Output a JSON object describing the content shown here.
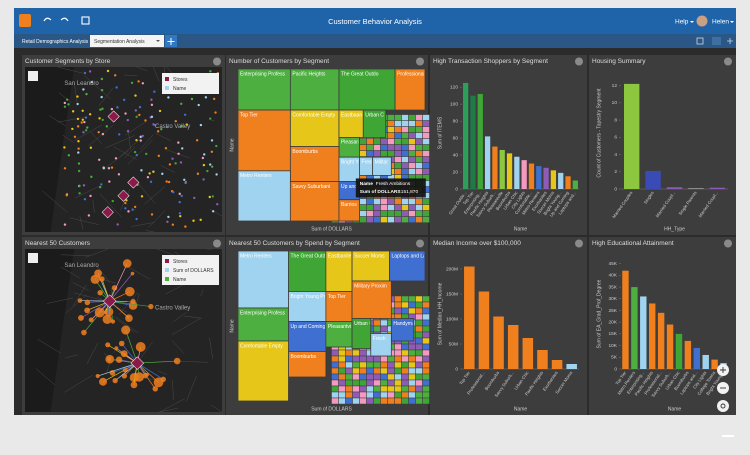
{
  "header": {
    "title": "Customer Behavior Analysis",
    "help": "Help",
    "user": "Helen"
  },
  "tabs": [
    "Retail Demographics Analysis",
    "Segmentation Analysis"
  ],
  "cards": [
    {
      "title": "Customer Segments by Store",
      "type": "map",
      "legend": [
        "Stores",
        "Name"
      ],
      "places": [
        "San Leandro",
        "Castro Valley"
      ]
    },
    {
      "title": "Number of Customers by Segment",
      "type": "treemap",
      "xlabel": "Sum of DOLLARS",
      "ylabel": "Name",
      "tiles": [
        {
          "label": "Enterprising Profess",
          "color": "#4caf3f"
        },
        {
          "label": "Pacific Heights",
          "color": "#4caf3f"
        },
        {
          "label": "The Great Outdo",
          "color": "#3fa535"
        },
        {
          "label": "Professional Pride",
          "color": "#f07f1e"
        },
        {
          "label": "Top Tier",
          "color": "#f07f1e"
        },
        {
          "label": "Comfortable Empty",
          "color": "#e6c619"
        },
        {
          "label": "Eastbaanites",
          "color": "#e6c619"
        },
        {
          "label": "Urban C",
          "color": "#3fa535"
        },
        {
          "label": "Pleasan",
          "color": "#4caf3f"
        },
        {
          "label": "Boomburbs",
          "color": "#f07f1e"
        },
        {
          "label": "Metro Renters",
          "color": "#9fd3f0"
        },
        {
          "label": "Savvy Suburbani",
          "color": "#f07f1e"
        },
        {
          "label": "Fresh",
          "color": "#9fd3f0"
        },
        {
          "label": "Militar",
          "color": "#9fd3f0"
        },
        {
          "label": "Bright Youn",
          "color": "#9fd3f0"
        },
        {
          "label": "Up and",
          "color": "#3f6fd0"
        },
        {
          "label": "Barrios",
          "color": "#f07f1e"
        }
      ],
      "tooltip": {
        "field": "Name",
        "name": "Fresh Ambitions",
        "measure": "Sum of DOLLARS",
        "value": "151,870"
      }
    },
    {
      "title": "High Transaction Shoppers by Segment",
      "type": "bar",
      "ylabel": "Sum of ITEMS",
      "xlabel": "Name",
      "categories": [
        "Great Outdo...",
        "Top Tier",
        "Enterprising...",
        "Pacific Heights",
        "Savvy Suburb...",
        "Pleasantville",
        "Boomburbs",
        "Urban Chic",
        "City Lights",
        "Comfortable...",
        "Metro Renters",
        "Exurbanites",
        "Soccer Moms",
        "Bright Young...",
        "Up and Coming",
        "Laptops and..."
      ],
      "values": [
        125,
        110,
        112,
        62,
        50,
        46,
        42,
        38,
        34,
        30,
        27,
        25,
        22,
        19,
        15,
        10
      ],
      "colors": [
        "#2e9e5b",
        "#1f7a45",
        "#3fa535",
        "#9fd3f0",
        "#f07f1e",
        "#8dc63f",
        "#e6c619",
        "#9fd3f0",
        "#f49ac1",
        "#f07f1e",
        "#3f6fd0",
        "#8e5bb5",
        "#e6c619",
        "#9fd3f0",
        "#f07f1e",
        "#4caf3f"
      ],
      "ylim": [
        0,
        132
      ],
      "yticks": [
        0,
        20,
        40,
        60,
        80,
        100,
        120
      ]
    },
    {
      "title": "Housing Summary",
      "type": "bar",
      "ylabel": "Count of Customers - Tapestry Segment",
      "xlabel": "HH_Type",
      "categories": [
        "Married Couples",
        "Singles",
        "Married Coupl...",
        "Single Parents",
        "Married Coupl..."
      ],
      "values": [
        12.2,
        2.1,
        0.2,
        0.1,
        0.15
      ],
      "colors": [
        "#8dc63f",
        "#3b4bb5",
        "#8e5bb5",
        "#9a9a9a",
        "#8e5bb5"
      ],
      "ylim": [
        0,
        13
      ],
      "yticks": [
        0,
        2,
        4,
        6,
        8,
        10,
        12
      ]
    },
    {
      "title": "Nearest 50 Customers",
      "type": "map",
      "legend": [
        "Stores",
        "Sum of DOLLARS",
        "Name"
      ],
      "places": [
        "San Leandro",
        "Castro Valley"
      ]
    },
    {
      "title": "Nearest 50 Customers by Spend by Segment",
      "type": "treemap",
      "xlabel": "Sum of DOLLARS",
      "ylabel": "Name",
      "tiles": [
        {
          "label": "Metro Renters",
          "color": "#9fd3f0"
        },
        {
          "label": "The Great Outd",
          "color": "#3fa535"
        },
        {
          "label": "Eastbanites",
          "color": "#e6c619"
        },
        {
          "label": "Soccer Moms",
          "color": "#e6c619"
        },
        {
          "label": "Laptops and Lattes",
          "color": "#3f6fd0"
        },
        {
          "label": "Bright Young Profes",
          "color": "#9fd3f0"
        },
        {
          "label": "Top Tier",
          "color": "#f07f1e"
        },
        {
          "label": "Military Proxim",
          "color": "#f07f1e"
        },
        {
          "label": "Enterprising Profess",
          "color": "#4caf3f"
        },
        {
          "label": "Up and Coming",
          "color": "#3f6fd0"
        },
        {
          "label": "Pleasantville",
          "color": "#4caf3f"
        },
        {
          "label": "Handyma",
          "color": "#3f6fd0"
        },
        {
          "label": "Urban C",
          "color": "#3fa535"
        },
        {
          "label": "Boomburbs",
          "color": "#f07f1e"
        },
        {
          "label": "Comfortable Empty",
          "color": "#e6c619"
        },
        {
          "label": "Fresh",
          "color": "#9fd3f0"
        }
      ]
    },
    {
      "title": "Median Income over $100,000",
      "type": "bar",
      "ylabel": "Sum of Median_HH_Income",
      "xlabel": "Name",
      "categories": [
        "Top Tier",
        "Professional...",
        "Boomburbs",
        "Savvy Suburb...",
        "Urban Chic",
        "Pacific Heights",
        "Exurbanites",
        "Soccer Moms"
      ],
      "values": [
        205000000,
        155000000,
        105000000,
        88000000,
        62000000,
        38000000,
        18000000,
        10000000
      ],
      "colors": [
        "#f07f1e",
        "#f07f1e",
        "#f07f1e",
        "#f07f1e",
        "#f07f1e",
        "#f07f1e",
        "#f07f1e",
        "#9fd3f0"
      ],
      "ylim": [
        0,
        220000000
      ],
      "yticks": [
        0,
        {
          "value": 50000000,
          "label": "50M"
        },
        {
          "value": 100000000,
          "label": "100M"
        },
        {
          "value": 150000000,
          "label": "150M"
        },
        {
          "value": 200000000,
          "label": "200M"
        }
      ]
    },
    {
      "title": "High Educational Attainment",
      "type": "bar",
      "ylabel": "Sum of EA_Grad_Prof_Degree",
      "xlabel": "Name",
      "categories": [
        "Top Tier",
        "Metro Renters",
        "Enterprising...",
        "Pacific Heights",
        "Professional...",
        "Savvy Suburb...",
        "Urban Chic",
        "Boomburbs",
        "Laptops and...",
        "City Lights",
        "College Towns",
        "Bright Young..."
      ],
      "values": [
        42000,
        35000,
        31000,
        28000,
        24000,
        19000,
        15000,
        12000,
        9000,
        6000,
        4000,
        2500
      ],
      "colors": [
        "#f07f1e",
        "#4caf3f",
        "#9fd3f0",
        "#f07f1e",
        "#f07f1e",
        "#f07f1e",
        "#3fa535",
        "#f07f1e",
        "#3f6fd0",
        "#9fd3f0",
        "#f07f1e",
        "#9fd3f0"
      ],
      "ylim": [
        0,
        47000
      ],
      "yticks": [
        0,
        {
          "value": 5000,
          "label": "5K"
        },
        {
          "value": 10000,
          "label": "10K"
        },
        {
          "value": 15000,
          "label": "15K"
        },
        {
          "value": 20000,
          "label": "20K"
        },
        {
          "value": 25000,
          "label": "25K"
        },
        {
          "value": 30000,
          "label": "30K"
        },
        {
          "value": 35000,
          "label": "35K"
        },
        {
          "value": 40000,
          "label": "40K"
        },
        {
          "value": 45000,
          "label": "45K"
        }
      ]
    }
  ]
}
